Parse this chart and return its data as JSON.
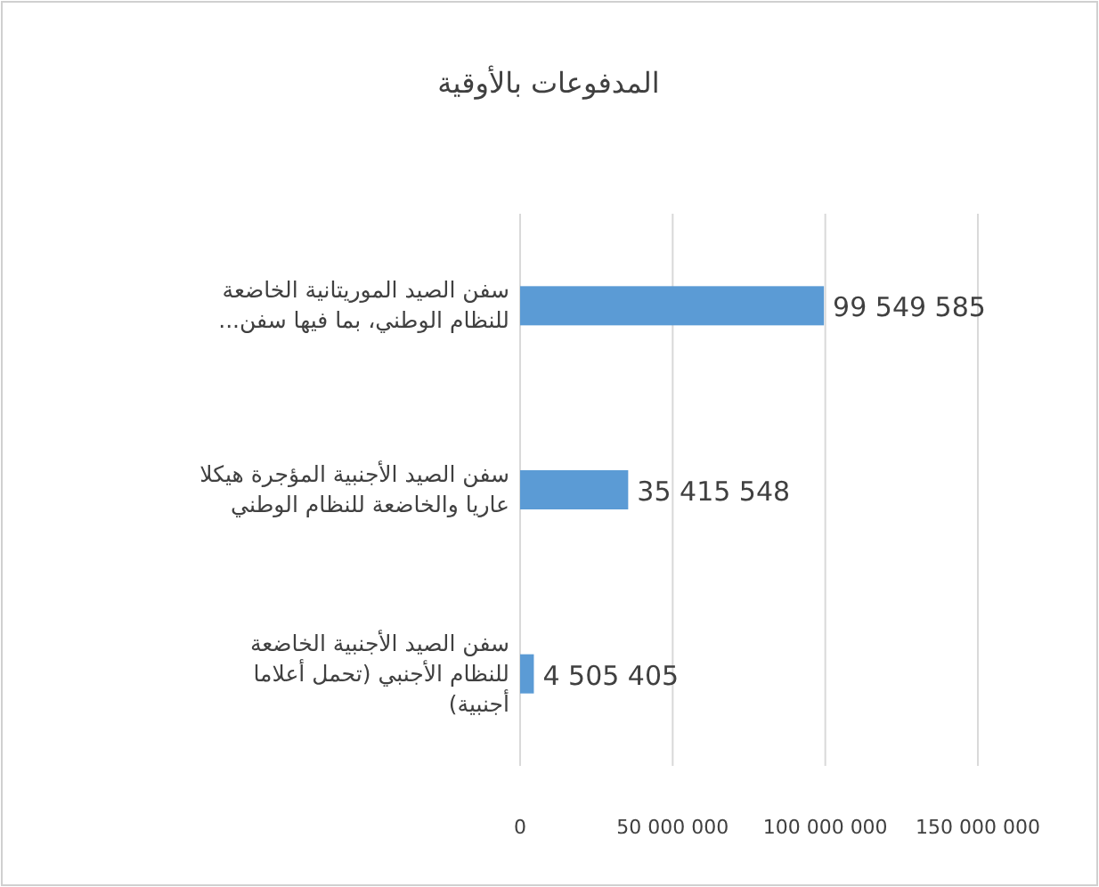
{
  "chart_data": {
    "type": "bar",
    "orientation": "horizontal",
    "title": "المدفوعات بالأوقية",
    "categories": [
      "سفن الصيد الموريتانية الخاضعة للنظام الوطني، بما فيها سفن...",
      "سفن الصيد الأجنبية المؤجرة هيكلا عاريا والخاضعة للنظام الوطني",
      "سفن الصيد الأجنبية الخاضعة للنظام الأجنبي (تحمل أعلاما أجنبية)"
    ],
    "values": [
      99549585,
      35415548,
      4505405
    ],
    "value_labels": [
      "99 549 585",
      "35 415 548",
      "4 505 405"
    ],
    "color": "#5b9bd5",
    "xlim": [
      0,
      150000000
    ],
    "xticks": [
      0,
      {
        "value": 50000000,
        "label": "50 000 000"
      },
      {
        "value": 100000000,
        "label": "100 000 000"
      },
      {
        "value": 150000000,
        "label": "150 000 000"
      }
    ],
    "grid": "x"
  }
}
